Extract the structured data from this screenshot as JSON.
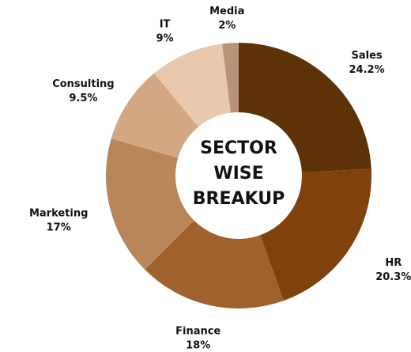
{
  "chart_data": {
    "type": "donut",
    "title": "SECTOR WISE BREAKUP",
    "categories": [
      "Sales",
      "HR",
      "Finance",
      "Marketing",
      "Consulting",
      "IT",
      "Media"
    ],
    "values": [
      24.2,
      20.3,
      18,
      17,
      9.5,
      9,
      2
    ],
    "value_labels": [
      "24.2%",
      "20.3%",
      "18%",
      "17%",
      "9.5%",
      "9%",
      "2%"
    ],
    "colors": [
      "#5e3207",
      "#7f420c",
      "#a0622d",
      "#b98659",
      "#d1a883",
      "#e8c9ad",
      "#b89378"
    ]
  }
}
